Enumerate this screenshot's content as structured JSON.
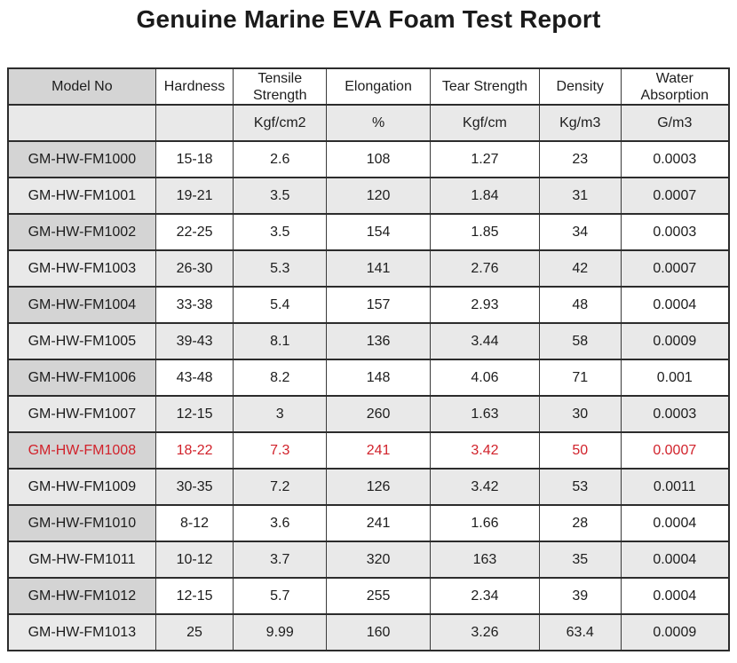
{
  "title": "Genuine Marine EVA Foam Test Report",
  "colors": {
    "highlight_red": "#d1222b",
    "dark_gray_cell": "#d4d4d4",
    "light_gray_row": "#e9e9e9",
    "border": "#2c2c2c"
  },
  "table": {
    "columns": [
      {
        "label": "Model No",
        "unit": ""
      },
      {
        "label": "Hardness",
        "unit": ""
      },
      {
        "label": "Tensile Strength",
        "unit": "Kgf/cm2"
      },
      {
        "label": "Elongation",
        "unit": "%"
      },
      {
        "label": "Tear Strength",
        "unit": "Kgf/cm"
      },
      {
        "label": "Density",
        "unit": "Kg/m3"
      },
      {
        "label": "Water Absorption",
        "unit": "G/m3"
      }
    ],
    "rows": [
      {
        "model": "GM-HW-FM1000",
        "hardness": "15-18",
        "tensile": "2.6",
        "elongation": "108",
        "tear": "1.27",
        "density": "23",
        "water": "0.0003",
        "highlight": false
      },
      {
        "model": "GM-HW-FM1001",
        "hardness": "19-21",
        "tensile": "3.5",
        "elongation": "120",
        "tear": "1.84",
        "density": "31",
        "water": "0.0007",
        "highlight": false
      },
      {
        "model": "GM-HW-FM1002",
        "hardness": "22-25",
        "tensile": "3.5",
        "elongation": "154",
        "tear": "1.85",
        "density": "34",
        "water": "0.0003",
        "highlight": false
      },
      {
        "model": "GM-HW-FM1003",
        "hardness": "26-30",
        "tensile": "5.3",
        "elongation": "141",
        "tear": "2.76",
        "density": "42",
        "water": "0.0007",
        "highlight": false
      },
      {
        "model": "GM-HW-FM1004",
        "hardness": "33-38",
        "tensile": "5.4",
        "elongation": "157",
        "tear": "2.93",
        "density": "48",
        "water": "0.0004",
        "highlight": false
      },
      {
        "model": "GM-HW-FM1005",
        "hardness": "39-43",
        "tensile": "8.1",
        "elongation": "136",
        "tear": "3.44",
        "density": "58",
        "water": "0.0009",
        "highlight": false
      },
      {
        "model": "GM-HW-FM1006",
        "hardness": "43-48",
        "tensile": "8.2",
        "elongation": "148",
        "tear": "4.06",
        "density": "71",
        "water": "0.001",
        "highlight": false
      },
      {
        "model": "GM-HW-FM1007",
        "hardness": "12-15",
        "tensile": "3",
        "elongation": "260",
        "tear": "1.63",
        "density": "30",
        "water": "0.0003",
        "highlight": false
      },
      {
        "model": "GM-HW-FM1008",
        "hardness": "18-22",
        "tensile": "7.3",
        "elongation": "241",
        "tear": "3.42",
        "density": "50",
        "water": "0.0007",
        "highlight": true
      },
      {
        "model": "GM-HW-FM1009",
        "hardness": "30-35",
        "tensile": "7.2",
        "elongation": "126",
        "tear": "3.42",
        "density": "53",
        "water": "0.0011",
        "highlight": false
      },
      {
        "model": "GM-HW-FM1010",
        "hardness": "8-12",
        "tensile": "3.6",
        "elongation": "241",
        "tear": "1.66",
        "density": "28",
        "water": "0.0004",
        "highlight": false
      },
      {
        "model": "GM-HW-FM1011",
        "hardness": "10-12",
        "tensile": "3.7",
        "elongation": "320",
        "tear": "163",
        "density": "35",
        "water": "0.0004",
        "highlight": false
      },
      {
        "model": "GM-HW-FM1012",
        "hardness": "12-15",
        "tensile": "5.7",
        "elongation": "255",
        "tear": "2.34",
        "density": "39",
        "water": "0.0004",
        "highlight": false
      },
      {
        "model": "GM-HW-FM1013",
        "hardness": "25",
        "tensile": "9.99",
        "elongation": "160",
        "tear": "3.26",
        "density": "63.4",
        "water": "0.0009",
        "highlight": false
      }
    ]
  }
}
